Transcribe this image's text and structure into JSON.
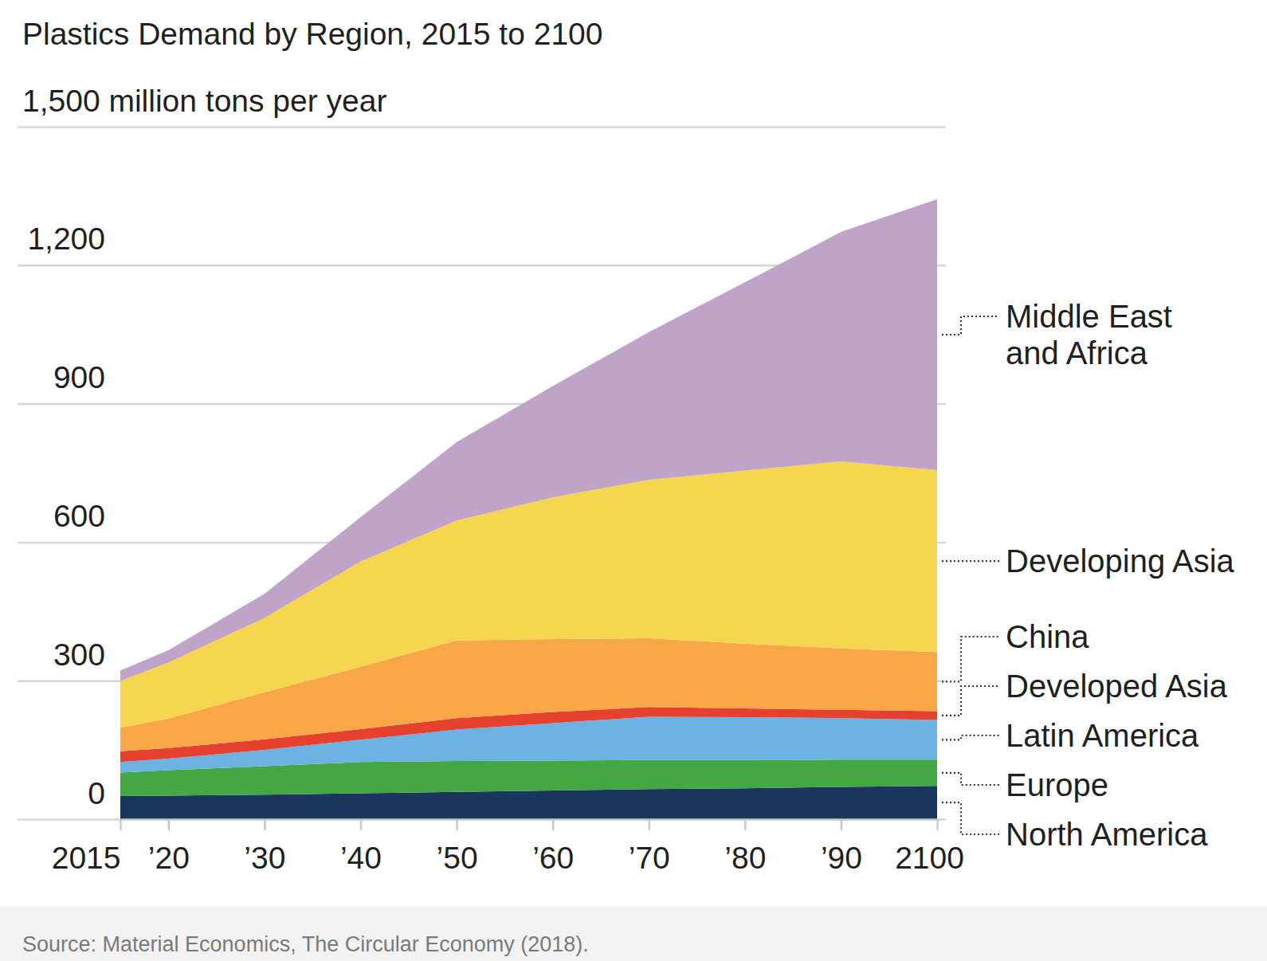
{
  "chart_data": {
    "type": "area",
    "title": "Plastics Demand by Region, 2015 to 2100",
    "source": "Source: Material Economics, The Circular Economy (2018).",
    "stacked": true,
    "grid": true,
    "x": [
      2015,
      2020,
      2030,
      2040,
      2050,
      2060,
      2070,
      2080,
      2090,
      2100
    ],
    "xlim": [
      2015,
      2100
    ],
    "xticks": [
      2015,
      {
        "value": 2020,
        "label": "’20"
      },
      {
        "value": 2030,
        "label": "’30"
      },
      {
        "value": 2040,
        "label": "’40"
      },
      {
        "value": 2050,
        "label": "’50"
      },
      {
        "value": 2060,
        "label": "’60"
      },
      {
        "value": 2070,
        "label": "’70"
      },
      {
        "value": 2080,
        "label": "’80"
      },
      {
        "value": 2090,
        "label": "’90"
      },
      2100
    ],
    "ylim": [
      0,
      1500
    ],
    "yticks": [
      0,
      300,
      600,
      900,
      {
        "value": 1200,
        "label": "1,200"
      },
      {
        "value": 1500,
        "label": "1,500 million tons per year"
      }
    ],
    "series": [
      {
        "name": "North America",
        "color": "#1b365d",
        "values": [
          50,
          51,
          53,
          56,
          59,
          62,
          65,
          67,
          70,
          72
        ]
      },
      {
        "name": "Europe",
        "color": "#43a843",
        "values": [
          51,
          55,
          62,
          68,
          67,
          65,
          63,
          61,
          59,
          57
        ]
      },
      {
        "name": "Latin America",
        "color": "#6cb3e4",
        "values": [
          23,
          25,
          35,
          48,
          68,
          81,
          94,
          93,
          90,
          86
        ]
      },
      {
        "name": "Developed Asia",
        "color": "#e6402e",
        "values": [
          23,
          23,
          23,
          23,
          25,
          24,
          21,
          19,
          18,
          19
        ]
      },
      {
        "name": "China",
        "color": "#f7a748",
        "values": [
          51,
          64,
          102,
          135,
          168,
          158,
          149,
          140,
          133,
          128
        ]
      },
      {
        "name": "Developing Asia",
        "color": "#f6d64f",
        "values": [
          101,
          121,
          161,
          228,
          260,
          307,
          343,
          375,
          405,
          394
        ]
      },
      {
        "name": "Middle East and Africa",
        "color": "#c0a3c9",
        "values": [
          23,
          27,
          52,
          96,
          170,
          241,
          320,
          408,
          497,
          587
        ]
      }
    ]
  }
}
